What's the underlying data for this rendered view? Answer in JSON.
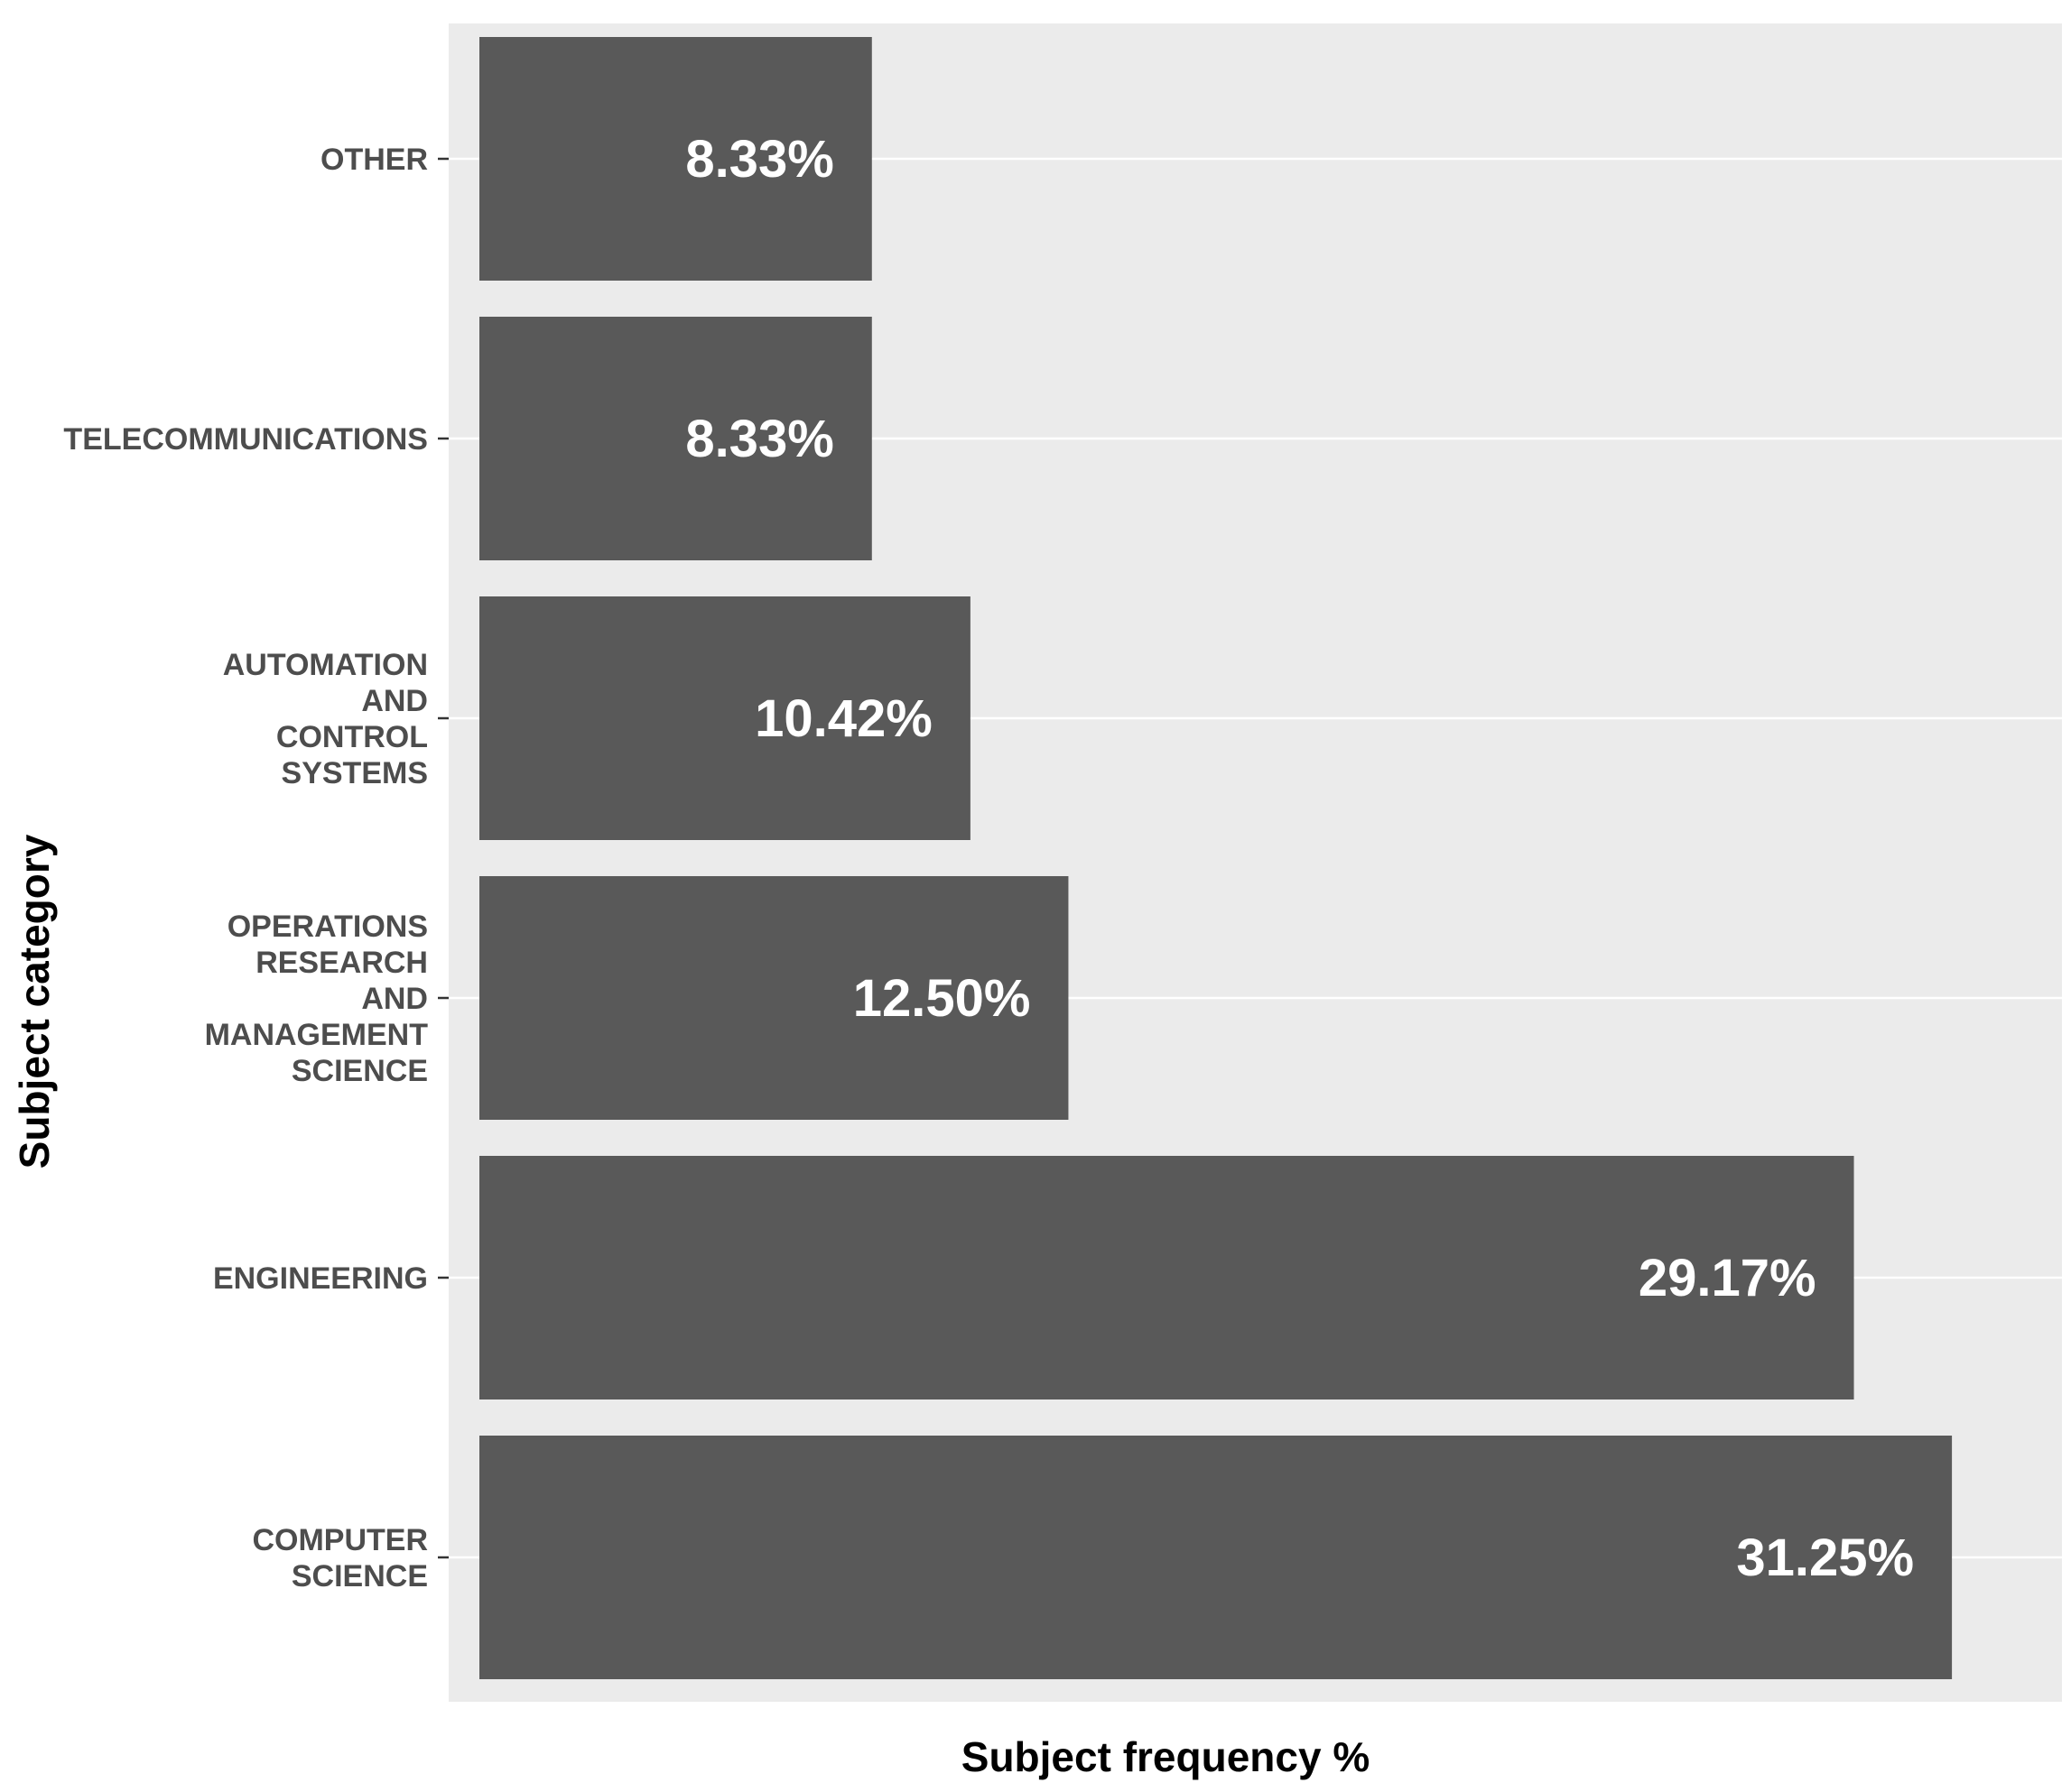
{
  "chart_data": {
    "type": "bar",
    "orientation": "horizontal",
    "categories": [
      "COMPUTER SCIENCE",
      "ENGINEERING",
      "OPERATIONS RESEARCH AND MANAGEMENT SCIENCE",
      "AUTOMATION AND CONTROL SYSTEMS",
      "TELECOMMUNICATIONS",
      "OTHER"
    ],
    "category_label_lines": [
      [
        "COMPUTER",
        "SCIENCE"
      ],
      [
        "ENGINEERING"
      ],
      [
        "OPERATIONS",
        "RESEARCH",
        "AND",
        "MANAGEMENT",
        "SCIENCE"
      ],
      [
        "AUTOMATION",
        "AND",
        "CONTROL",
        "SYSTEMS"
      ],
      [
        "TELECOMMUNICATIONS"
      ],
      [
        "OTHER"
      ]
    ],
    "values": [
      31.25,
      29.17,
      12.5,
      10.42,
      8.33,
      8.33
    ],
    "data_labels": [
      "31.25%",
      "29.17%",
      "12.50%",
      "10.42%",
      "8.33%",
      "8.33%"
    ],
    "title": "",
    "xlabel": "Subject frequency %",
    "ylabel": "Subject category",
    "xlim": [
      0,
      32.8
    ],
    "grid": true,
    "legend": "none",
    "colors": {
      "panel_background": "#ebebeb",
      "bar_fill": "#595959",
      "grid_line": "#ffffff",
      "bar_label": "#ffffff",
      "category_text": "#4d4d4d",
      "axis_title": "#000000"
    }
  }
}
